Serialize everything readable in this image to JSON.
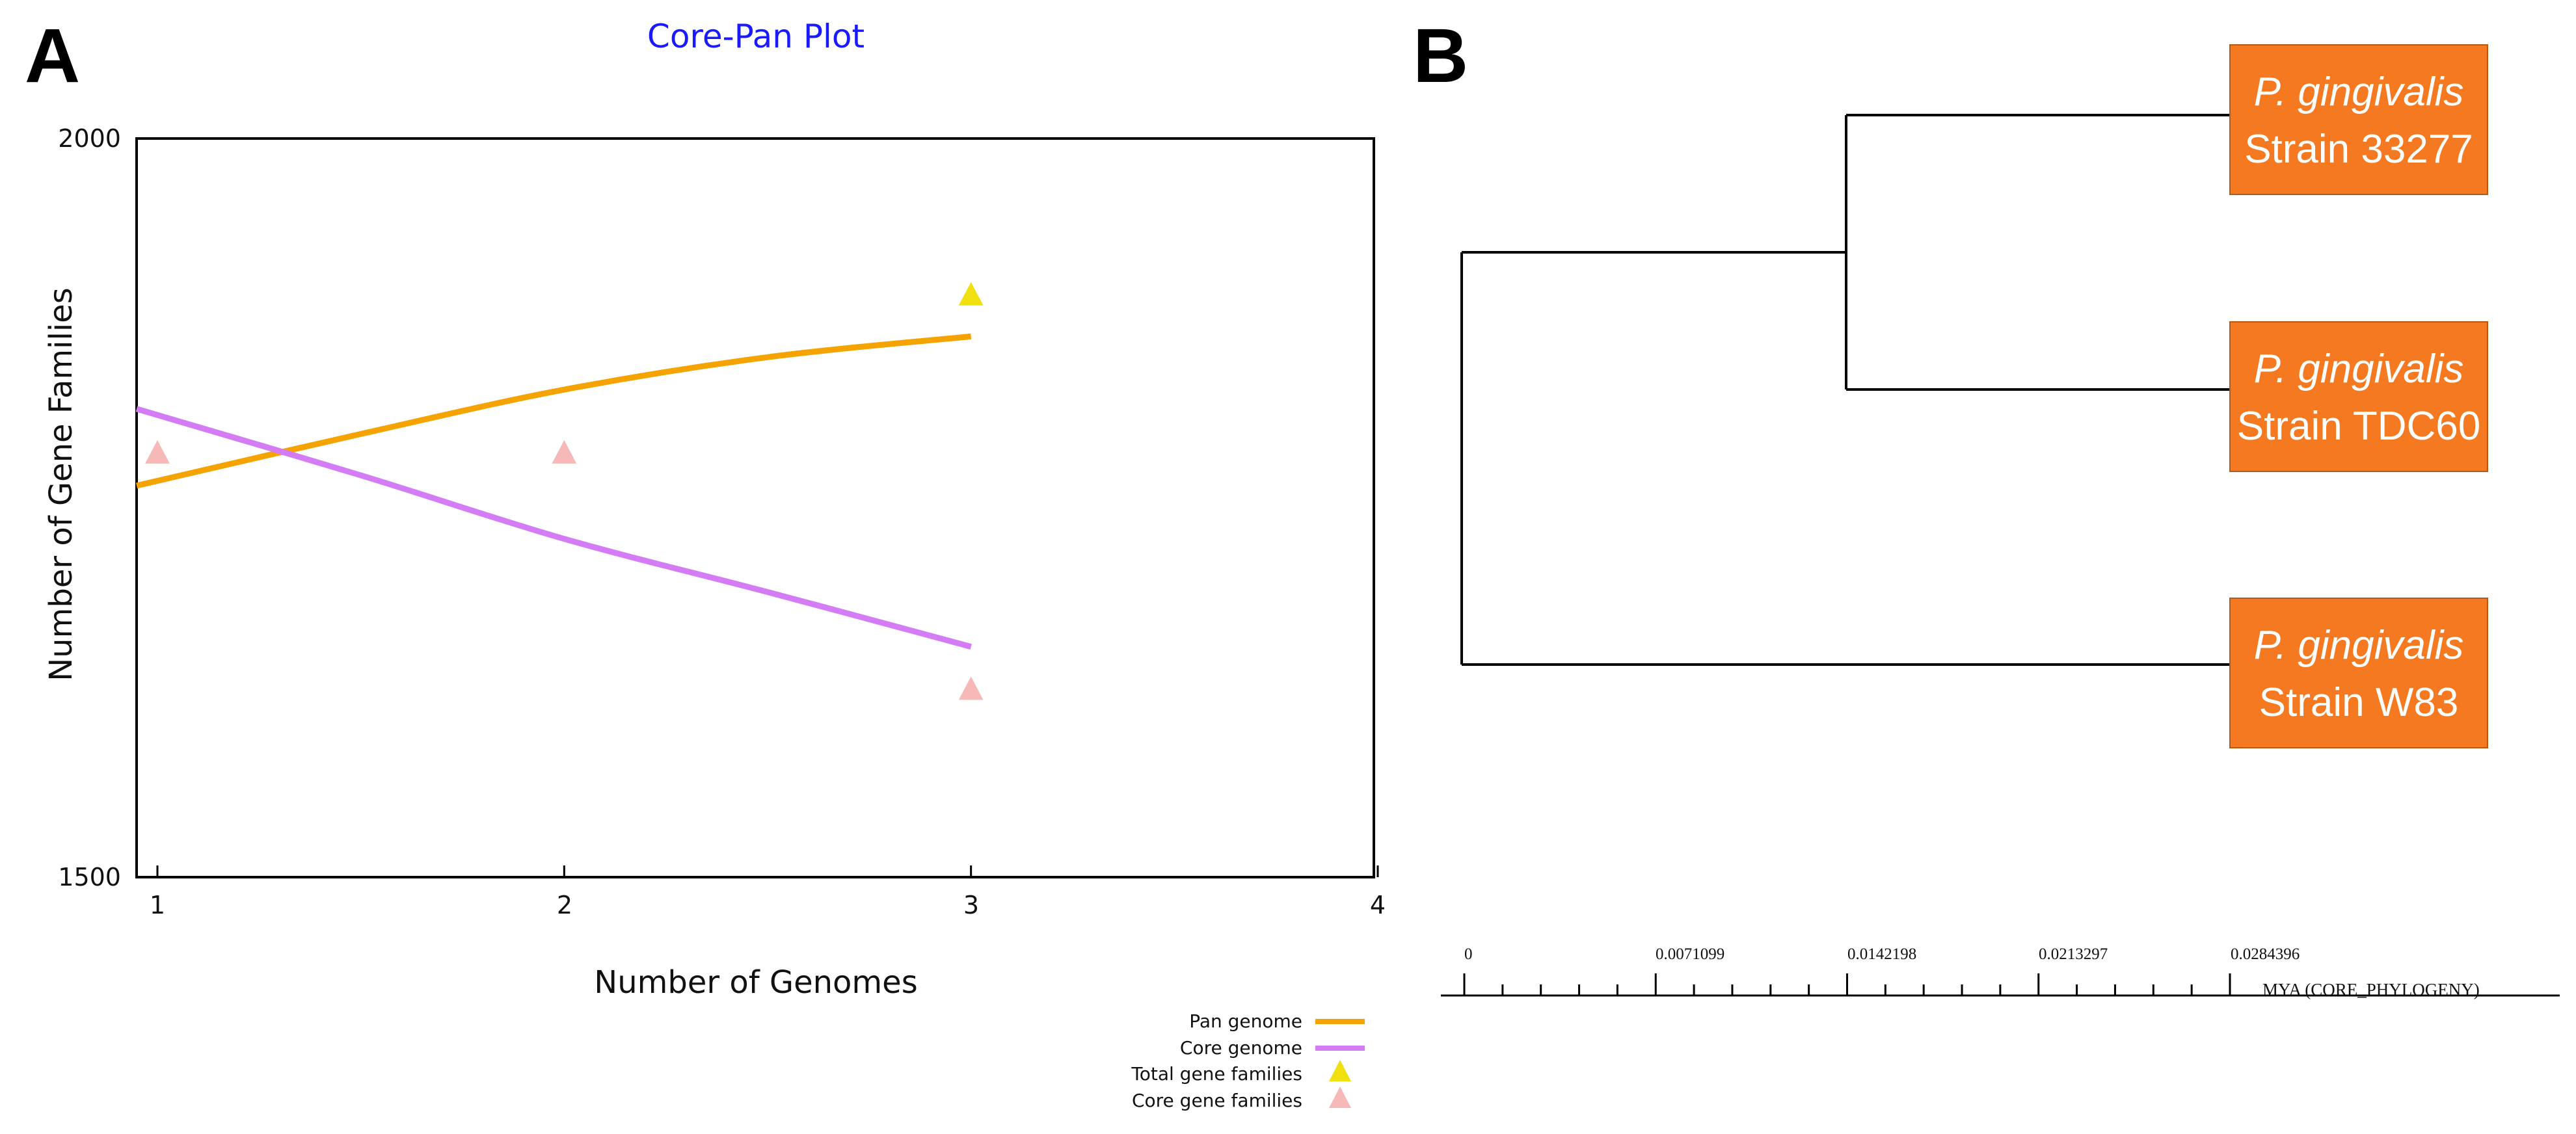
{
  "panels": {
    "a_label": "A",
    "b_label": "B"
  },
  "chart_data": {
    "type": "line",
    "title": "Core-Pan Plot",
    "xlabel": "Number of Genomes",
    "ylabel": "Number of Gene Families",
    "xlim": [
      1,
      4
    ],
    "ylim": [
      1500,
      2000
    ],
    "xticks": [
      "1",
      "2",
      "3",
      "4"
    ],
    "yticks": [
      "1500",
      "2000"
    ],
    "series": [
      {
        "name": "Pan genome",
        "kind": "line",
        "color": "#f5a300",
        "x": [
          1,
          1.5,
          2,
          2.5,
          3
        ],
        "y": [
          1765,
          1800,
          1830,
          1852,
          1866
        ]
      },
      {
        "name": "Core genome",
        "kind": "line",
        "color": "#d37cf5",
        "x": [
          1,
          1.5,
          2,
          2.5,
          3
        ],
        "y": [
          1817,
          1772,
          1729,
          1693,
          1656
        ]
      },
      {
        "name": "Total gene families",
        "kind": "marker",
        "color": "#f0e010",
        "x": [
          3
        ],
        "y": [
          1893
        ]
      },
      {
        "name": "Core gene families",
        "kind": "marker",
        "color": "#f7b8b8",
        "x": [
          1,
          2,
          3
        ],
        "y": [
          1786,
          1786,
          1626
        ]
      }
    ],
    "legend_position": "bottom-right"
  },
  "tree": {
    "tip_color": "#f47920",
    "taxa": [
      {
        "genus": "P. gingivalis",
        "strain": "Strain 33277"
      },
      {
        "genus": "P. gingivalis",
        "strain": "Strain TDC60"
      },
      {
        "genus": "P. gingivalis",
        "strain": "Strain W83"
      }
    ],
    "scale": {
      "ticks": [
        "0",
        "0.0071099",
        "0.0142198",
        "0.0213297",
        "0.0284396"
      ],
      "unit": "MYA (CORE_PHYLOGENY)"
    }
  }
}
